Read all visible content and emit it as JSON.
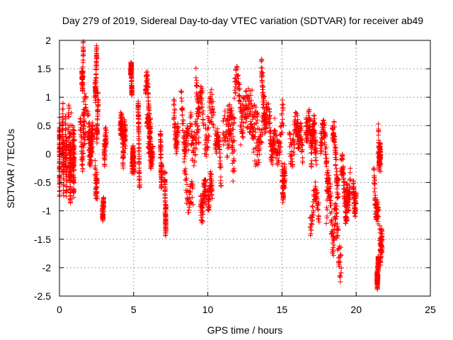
{
  "chart_data": {
    "type": "scatter",
    "title": "Day 279 of 2019, Sidereal Day-to-day VTEC variation (SDTVAR) for receiver ab49",
    "xlabel": "GPS time / hours",
    "ylabel": "SDTVAR / TECUs",
    "xlim": [
      0,
      25
    ],
    "ylim": [
      -2.5,
      2
    ],
    "xticks": [
      "0",
      "5",
      "10",
      "15",
      "20",
      "25"
    ],
    "yticks": [
      "-2.5",
      "-2",
      "-1.5",
      "-1",
      "-0.5",
      "0",
      "0.5",
      "1",
      "1.5",
      "2"
    ],
    "grid": true,
    "marker": "plus",
    "color": "#ff0000",
    "tracks": [
      [
        0.0,
        0.0,
        -0.05,
        0.0,
        0.8,
        0.35,
        0.2
      ],
      [
        0.2,
        0.1,
        0.1,
        0.0,
        0.9,
        0.4,
        0.22
      ],
      [
        0.4,
        0.1,
        0.0,
        -0.1,
        0.6,
        0.45,
        0.2
      ],
      [
        0.6,
        0.2,
        0.2,
        0.1,
        0.5,
        0.45,
        0.18
      ],
      [
        0.7,
        0.05,
        -0.4,
        0.0,
        0.5,
        0.3,
        0.15
      ],
      [
        0.9,
        0.1,
        -0.2,
        0.2,
        0.7,
        0.4,
        0.15
      ],
      [
        1.4,
        0.3,
        0.1,
        0.4,
        0.7,
        0.3,
        0.22
      ],
      [
        1.5,
        0.12,
        1.15,
        0.6,
        0.4,
        0.15,
        0.12
      ],
      [
        1.6,
        0.2,
        0.5,
        0.2,
        0.3,
        0.3,
        0.18
      ],
      [
        1.9,
        0.35,
        0.4,
        -0.3,
        0.4,
        0.3,
        0.12
      ],
      [
        2.0,
        0.25,
        0.2,
        0.0,
        0.4,
        0.2,
        0.12
      ],
      [
        2.4,
        0.12,
        1.05,
        0.6,
        0.4,
        0.15,
        0.1
      ],
      [
        2.4,
        0.15,
        -0.3,
        -0.4,
        0.3,
        0.2,
        0.12
      ],
      [
        2.5,
        0.12,
        0.3,
        0.6,
        0.3,
        0.15,
        0.12
      ],
      [
        2.9,
        0.08,
        -1.0,
        0.05,
        0.3,
        0.05,
        0.08
      ],
      [
        3.0,
        0.15,
        0.1,
        0.1,
        0.3,
        0.2,
        0.1
      ],
      [
        4.1,
        0.2,
        0.8,
        -0.8,
        0.4,
        0.2,
        0.1
      ],
      [
        4.3,
        0.15,
        0.2,
        0.2,
        0.3,
        0.2,
        0.1
      ],
      [
        4.8,
        0.08,
        1.6,
        -0.4,
        0.3,
        0.05,
        0.05
      ],
      [
        4.9,
        0.12,
        -0.1,
        0.0,
        0.3,
        0.1,
        0.05
      ],
      [
        5.3,
        0.1,
        1.0,
        -1.5,
        0.2,
        0.05,
        0.05
      ],
      [
        5.8,
        0.35,
        1.25,
        -0.6,
        0.5,
        0.15,
        0.12
      ],
      [
        5.9,
        0.3,
        0.6,
        -0.6,
        0.4,
        0.15,
        0.12
      ],
      [
        6.0,
        0.3,
        0.1,
        0.0,
        0.3,
        0.15,
        0.08
      ],
      [
        6.8,
        0.1,
        0.1,
        -0.5,
        0.4,
        0.2,
        0.1
      ],
      [
        7.1,
        0.08,
        -0.7,
        -0.5,
        0.5,
        0.2,
        0.1
      ],
      [
        7.7,
        0.3,
        0.6,
        -0.4,
        0.4,
        0.2,
        0.12
      ],
      [
        8.2,
        0.5,
        0.8,
        -0.8,
        0.5,
        0.2,
        0.15
      ],
      [
        8.4,
        0.6,
        -0.3,
        -0.7,
        0.5,
        0.2,
        0.18
      ],
      [
        8.8,
        0.6,
        0.5,
        -0.4,
        0.6,
        0.3,
        0.18
      ],
      [
        9.2,
        0.5,
        1.3,
        -0.7,
        0.5,
        0.2,
        0.15
      ],
      [
        9.5,
        0.4,
        -0.8,
        0.0,
        0.5,
        0.2,
        0.12
      ],
      [
        9.8,
        0.6,
        0.4,
        0.3,
        0.5,
        0.3,
        0.15
      ],
      [
        10.0,
        0.3,
        -0.7,
        0.1,
        0.3,
        0.2,
        0.1
      ],
      [
        10.5,
        0.4,
        0.5,
        -0.8,
        0.4,
        0.2,
        0.12
      ],
      [
        11.0,
        0.8,
        0.7,
        -0.8,
        0.6,
        0.3,
        0.2
      ],
      [
        11.3,
        0.5,
        0.3,
        0.3,
        0.5,
        0.3,
        0.18
      ],
      [
        11.8,
        0.6,
        1.35,
        -0.7,
        0.5,
        0.2,
        0.15
      ],
      [
        12.2,
        0.8,
        0.4,
        0.6,
        0.5,
        0.3,
        0.18
      ],
      [
        12.5,
        1.0,
        0.8,
        -0.6,
        0.6,
        0.3,
        0.18
      ],
      [
        13.0,
        0.8,
        0.3,
        0.4,
        0.5,
        0.3,
        0.18
      ],
      [
        13.6,
        0.4,
        1.3,
        -0.8,
        0.5,
        0.2,
        0.12
      ],
      [
        14.1,
        0.4,
        0.5,
        -0.5,
        0.5,
        0.2,
        0.12
      ],
      [
        14.5,
        0.6,
        0.1,
        0.4,
        0.5,
        0.3,
        0.15
      ],
      [
        15.0,
        0.2,
        -0.4,
        -0.2,
        0.4,
        0.2,
        0.1
      ],
      [
        15.5,
        0.6,
        0.2,
        0.1,
        0.5,
        0.3,
        0.15
      ],
      [
        16.0,
        0.4,
        0.6,
        -0.6,
        0.4,
        0.2,
        0.12
      ],
      [
        16.6,
        0.4,
        0.7,
        -0.6,
        0.5,
        0.2,
        0.12
      ],
      [
        16.9,
        0.6,
        -1.0,
        0.2,
        0.5,
        0.2,
        0.15
      ],
      [
        17.0,
        0.3,
        0.5,
        -0.4,
        0.4,
        0.2,
        0.1
      ],
      [
        17.6,
        0.5,
        0.4,
        -0.5,
        0.5,
        0.2,
        0.12
      ],
      [
        18.0,
        0.5,
        -0.7,
        -0.6,
        0.6,
        0.3,
        0.15
      ],
      [
        18.4,
        0.4,
        0.4,
        -0.9,
        0.5,
        0.2,
        0.12
      ],
      [
        18.5,
        0.5,
        -1.2,
        -0.6,
        0.5,
        0.3,
        0.15
      ],
      [
        19.0,
        0.4,
        -0.3,
        -0.7,
        0.5,
        0.2,
        0.12
      ],
      [
        19.3,
        0.3,
        -1.0,
        0.5,
        0.4,
        0.2,
        0.12
      ],
      [
        19.8,
        0.2,
        -0.8,
        0.0,
        0.4,
        0.15,
        0.1
      ],
      [
        21.2,
        0.3,
        -0.4,
        -0.9,
        0.4,
        0.2,
        0.1
      ],
      [
        21.5,
        0.15,
        0.3,
        -0.6,
        0.5,
        0.15,
        0.1
      ],
      [
        21.6,
        0.15,
        -1.5,
        -0.2,
        0.4,
        0.2,
        0.1
      ],
      [
        21.4,
        0.1,
        -2.2,
        0.2,
        0.3,
        0.1,
        0.05
      ]
    ]
  }
}
